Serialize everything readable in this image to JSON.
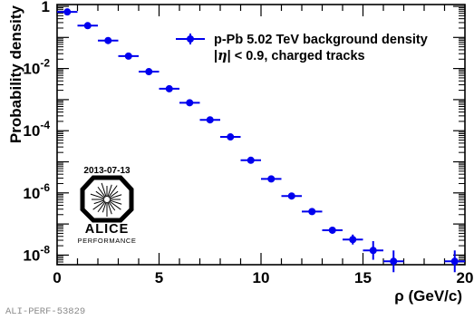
{
  "chart_data": {
    "type": "scatter",
    "title": "",
    "xlabel": "ρ (GeV/c)",
    "ylabel": "Probability density",
    "xlim": [
      0,
      20
    ],
    "ylim_log10": [
      -8.5,
      0
    ],
    "y_scale": "log",
    "grid": false,
    "legend_position": "top-right",
    "x_ticks": [
      "0",
      "5",
      "10",
      "15",
      "20"
    ],
    "y_ticks": [
      {
        "base": "1",
        "exp": ""
      },
      {
        "base": "10",
        "exp": "-2"
      },
      {
        "base": "10",
        "exp": "-4"
      },
      {
        "base": "10",
        "exp": "-6"
      },
      {
        "base": "10",
        "exp": "-8"
      }
    ],
    "legend": {
      "line1": "p-Pb 5.02 TeV background density",
      "line2_prefix": "|",
      "line2_symbol": "η",
      "line2_suffix": "| < 0.9, charged tracks"
    },
    "series": [
      {
        "name": "p-Pb 5.02 TeV background density",
        "color": "#0000ee",
        "x": [
          0.5,
          1.5,
          2.5,
          3.5,
          4.5,
          5.5,
          6.5,
          7.5,
          8.5,
          9.5,
          10.5,
          11.5,
          12.5,
          13.5,
          14.5,
          15.5,
          16.5,
          19.5
        ],
        "x_err": [
          0.5,
          0.5,
          0.5,
          0.5,
          0.5,
          0.5,
          0.5,
          0.5,
          0.5,
          0.5,
          0.5,
          0.5,
          0.5,
          0.5,
          0.5,
          0.5,
          0.5,
          0.5
        ],
        "log10y": [
          -0.18,
          -0.62,
          -1.1,
          -1.6,
          -2.1,
          -2.65,
          -3.1,
          -3.65,
          -4.2,
          -4.95,
          -5.55,
          -6.1,
          -6.6,
          -7.2,
          -7.5,
          -7.85,
          -8.2,
          -8.2
        ],
        "log10y_err": [
          0,
          0,
          0,
          0,
          0,
          0,
          0,
          0,
          0,
          0,
          0,
          0,
          0,
          0.08,
          0.16,
          0.3,
          0.35,
          0.35
        ]
      }
    ]
  },
  "logo": {
    "date": "2013-07-13",
    "name": "ALICE",
    "subtitle": "PERFORMANCE"
  },
  "footer": {
    "id": "ALI-PERF-53829"
  }
}
